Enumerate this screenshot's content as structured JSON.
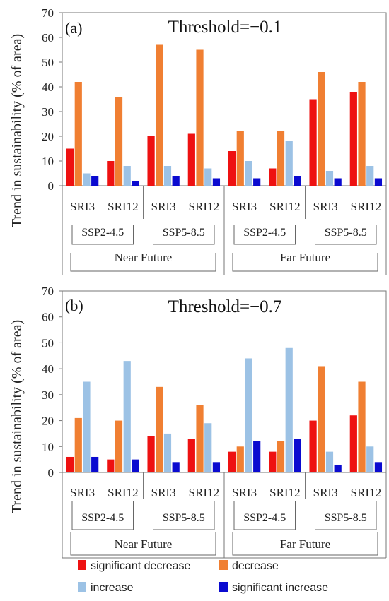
{
  "colors": {
    "significant_decrease": "#ee1111",
    "decrease": "#f07f32",
    "increase": "#9cc2e5",
    "significant_increase": "#0a0ad0"
  },
  "y_axis_label": "Trend in sustainability (% of area)",
  "legend": {
    "items": [
      {
        "label": "significant decrease",
        "color_key": "significant_decrease"
      },
      {
        "label": "decrease",
        "color_key": "decrease"
      },
      {
        "label": "increase",
        "color_key": "increase"
      },
      {
        "label": "significant increase",
        "color_key": "significant_increase"
      }
    ]
  },
  "chart_data": [
    {
      "type": "bar",
      "panel_label": "(a)",
      "title": "Threshold=−0.1",
      "ylim": [
        0,
        70
      ],
      "yticks": [
        0,
        10,
        20,
        30,
        40,
        50,
        60,
        70
      ],
      "categories": [
        "SRI3",
        "SRI12",
        "SRI3",
        "SRI12",
        "SRI3",
        "SRI12",
        "SRI3",
        "SRI12"
      ],
      "scenario_groups": [
        "SSP2-4.5",
        "SSP5-8.5",
        "SSP2-4.5",
        "SSP5-8.5"
      ],
      "period_groups": [
        "Near Future",
        "Far Future"
      ],
      "series": [
        {
          "name": "significant decrease",
          "values": [
            15,
            10,
            20,
            21,
            14,
            7,
            35,
            38
          ]
        },
        {
          "name": "decrease",
          "values": [
            42,
            36,
            57,
            55,
            22,
            22,
            46,
            42
          ]
        },
        {
          "name": "increase",
          "values": [
            5,
            8,
            8,
            7,
            10,
            18,
            6,
            8
          ]
        },
        {
          "name": "significant increase",
          "values": [
            4,
            2,
            4,
            3,
            3,
            4,
            3,
            3
          ]
        }
      ]
    },
    {
      "type": "bar",
      "panel_label": "(b)",
      "title": "Threshold=−0.7",
      "ylim": [
        0,
        70
      ],
      "yticks": [
        0,
        10,
        20,
        30,
        40,
        50,
        60,
        70
      ],
      "categories": [
        "SRI3",
        "SRI12",
        "SRI3",
        "SRI12",
        "SRI3",
        "SRI12",
        "SRI3",
        "SRI12"
      ],
      "scenario_groups": [
        "SSP2-4.5",
        "SSP5-8.5",
        "SSP2-4.5",
        "SSP5-8.5"
      ],
      "period_groups": [
        "Near Future",
        "Far Future"
      ],
      "series": [
        {
          "name": "significant decrease",
          "values": [
            6,
            5,
            14,
            13,
            8,
            8,
            20,
            22
          ]
        },
        {
          "name": "decrease",
          "values": [
            21,
            20,
            33,
            26,
            10,
            12,
            41,
            35
          ]
        },
        {
          "name": "increase",
          "values": [
            35,
            43,
            15,
            19,
            44,
            48,
            8,
            10
          ]
        },
        {
          "name": "significant increase",
          "values": [
            6,
            5,
            4,
            4,
            12,
            13,
            3,
            4
          ]
        }
      ]
    }
  ]
}
